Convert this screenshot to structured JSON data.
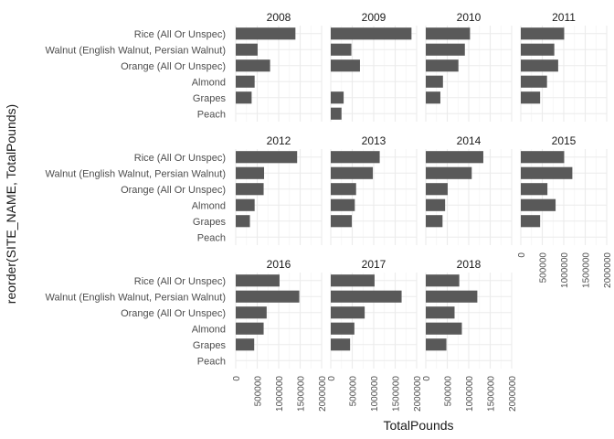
{
  "chart_data": {
    "type": "bar",
    "orientation": "horizontal",
    "layout": "facet_wrap",
    "ncol": 4,
    "xlabel": "TotalPounds",
    "ylabel": "reorder(SITE_NAME, TotalPounds)",
    "categories": [
      "Rice (All Or Unspec)",
      "Walnut (English Walnut, Persian Walnut)",
      "Orange (All Or Unspec)",
      "Almond",
      "Grapes",
      "Peach"
    ],
    "xlim": [
      0,
      2000000
    ],
    "xticks": [
      0,
      500000,
      1000000,
      1500000,
      2000000
    ],
    "xtick_labels": [
      "0",
      "500000",
      "1000000",
      "1500000",
      "2000000"
    ],
    "bar_color": "#595959",
    "grid": true,
    "facets": [
      {
        "panel": "2008",
        "values": [
          1390000,
          510000,
          800000,
          440000,
          370000,
          null
        ]
      },
      {
        "panel": "2009",
        "values": [
          1880000,
          480000,
          680000,
          null,
          300000,
          250000
        ]
      },
      {
        "panel": "2010",
        "values": [
          1030000,
          910000,
          760000,
          400000,
          340000,
          null
        ]
      },
      {
        "panel": "2011",
        "values": [
          1010000,
          780000,
          870000,
          610000,
          450000,
          null
        ]
      },
      {
        "panel": "2012",
        "values": [
          1430000,
          660000,
          650000,
          440000,
          330000,
          null
        ]
      },
      {
        "panel": "2013",
        "values": [
          1140000,
          980000,
          590000,
          560000,
          490000,
          null
        ]
      },
      {
        "panel": "2014",
        "values": [
          1340000,
          1070000,
          510000,
          450000,
          390000,
          null
        ]
      },
      {
        "panel": "2015",
        "values": [
          1010000,
          1200000,
          620000,
          810000,
          450000,
          null
        ]
      },
      {
        "panel": "2016",
        "values": [
          1020000,
          1480000,
          720000,
          650000,
          430000,
          null
        ]
      },
      {
        "panel": "2017",
        "values": [
          1020000,
          1650000,
          790000,
          550000,
          450000,
          null
        ]
      },
      {
        "panel": "2018",
        "values": [
          780000,
          1200000,
          670000,
          840000,
          480000,
          null
        ]
      }
    ]
  }
}
